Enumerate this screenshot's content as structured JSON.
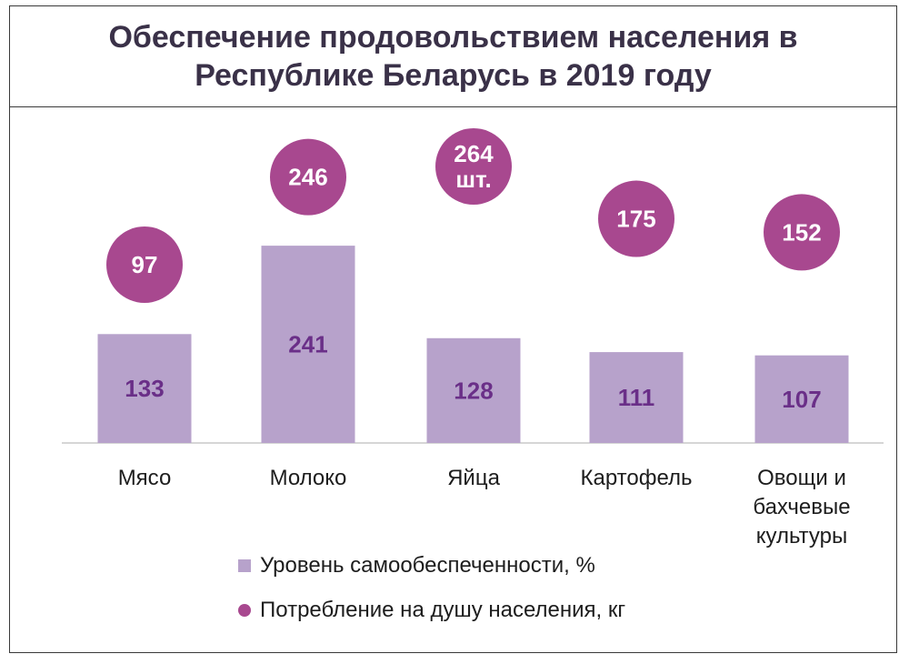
{
  "chart_data": {
    "type": "bar",
    "title": "Обеспечение продовольствием населения в\nРеспублике Беларусь в 2019 году",
    "categories": [
      "Мясо",
      "Молоко",
      "Яйца",
      "Картофель",
      "Овощи и\nбахчевые\nкультуры"
    ],
    "series": [
      {
        "name": "Уровень самообеспеченности, %",
        "kind": "bar",
        "color": "#b7a2cb",
        "values": [
          133,
          241,
          128,
          111,
          107
        ],
        "labels": [
          "133",
          "241",
          "128",
          "111",
          "107"
        ]
      },
      {
        "name": "Потребление на душу населения, кг",
        "kind": "dot",
        "color": "#a8488f",
        "values": [
          97,
          246,
          264,
          175,
          152
        ],
        "labels": [
          "97",
          "246",
          "264\nшт.",
          "175",
          "152"
        ]
      }
    ],
    "legend": "bottom",
    "grid": false
  }
}
